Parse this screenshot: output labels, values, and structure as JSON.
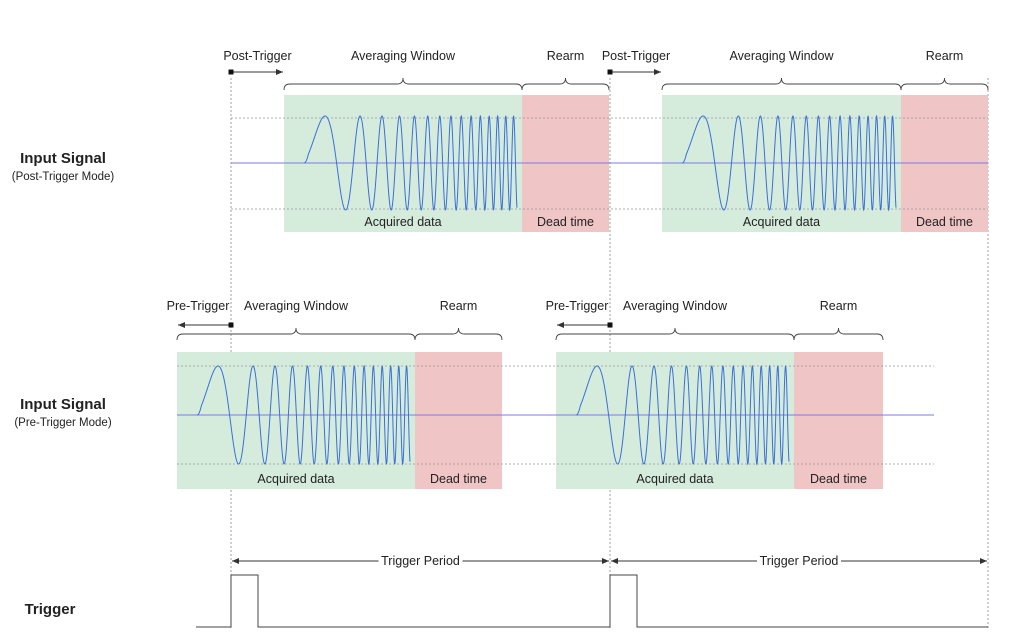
{
  "colors": {
    "acquired_fill": "#d5ecdc",
    "dead_fill": "#f0c5c5",
    "signal": "#3a6fd8",
    "baseline": "#7b7be0",
    "guide": "#888888",
    "trigger": "#444444"
  },
  "rows": [
    {
      "title": "Input Signal",
      "subtitle": "(Post-Trigger Mode)",
      "cycles": [
        {
          "offset_label": "Post-Trigger",
          "window_label": "Averaging Window",
          "rearm_label": "Rearm",
          "acquired_label": "Acquired data",
          "dead_label": "Dead time"
        },
        {
          "offset_label": "Post-Trigger",
          "window_label": "Averaging Window",
          "rearm_label": "Rearm",
          "acquired_label": "Acquired data",
          "dead_label": "Dead time"
        }
      ]
    },
    {
      "title": "Input Signal",
      "subtitle": "(Pre-Trigger Mode)",
      "cycles": [
        {
          "offset_label": "Pre-Trigger",
          "window_label": "Averaging Window",
          "rearm_label": "Rearm",
          "acquired_label": "Acquired data",
          "dead_label": "Dead time"
        },
        {
          "offset_label": "Pre-Trigger",
          "window_label": "Averaging Window",
          "rearm_label": "Rearm",
          "acquired_label": "Acquired data",
          "dead_label": "Dead time"
        }
      ]
    }
  ],
  "trigger": {
    "title": "Trigger",
    "period_labels": [
      "Trigger Period",
      "Trigger Period"
    ]
  }
}
